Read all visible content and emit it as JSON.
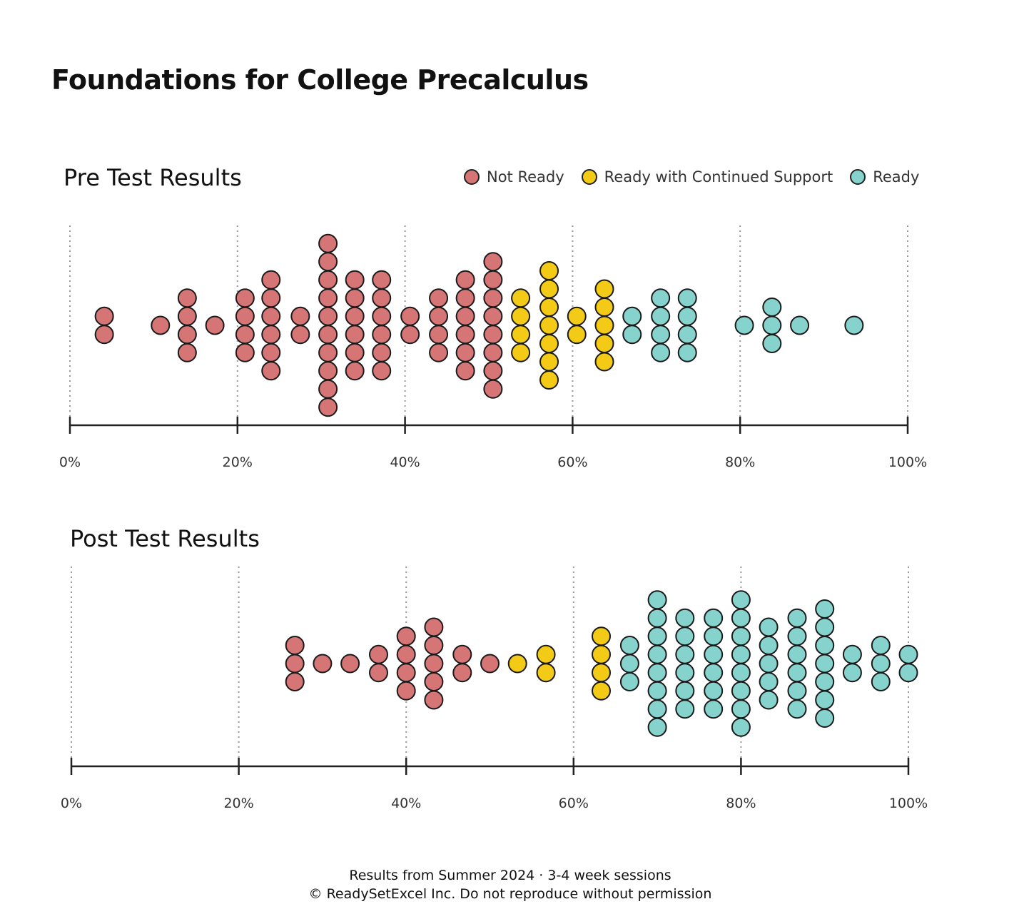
{
  "page_title": "Foundations for College Precalculus",
  "legend": [
    {
      "label": "Not Ready",
      "color": "#d57576"
    },
    {
      "label": "Ready with Continued Support",
      "color": "#f3cb17"
    },
    {
      "label": "Ready",
      "color": "#85d3cc"
    }
  ],
  "footer": {
    "line1": "Results from Summer 2024 · 3-4 week sessions",
    "line2": "© ReadySetExcel Inc. Do not reproduce without permission"
  },
  "chart_data": [
    {
      "type": "scatter",
      "title": "Pre Test Results",
      "xlim": [
        0,
        100
      ],
      "x_ticks": [
        "0%",
        "20%",
        "40%",
        "60%",
        "80%",
        "100%"
      ],
      "grid": "vertical dotted",
      "legend_position": "top-right",
      "point_columns": [
        {
          "x": 4.1,
          "count": 2,
          "category": "Not Ready"
        },
        {
          "x": 10.8,
          "count": 1,
          "category": "Not Ready"
        },
        {
          "x": 14,
          "count": 4,
          "category": "Not Ready"
        },
        {
          "x": 17.3,
          "count": 1,
          "category": "Not Ready"
        },
        {
          "x": 20.9,
          "count": 4,
          "category": "Not Ready"
        },
        {
          "x": 24,
          "count": 6,
          "category": "Not Ready"
        },
        {
          "x": 27.5,
          "count": 2,
          "category": "Not Ready"
        },
        {
          "x": 30.8,
          "count": 10,
          "category": "Not Ready"
        },
        {
          "x": 34,
          "count": 6,
          "category": "Not Ready"
        },
        {
          "x": 37.2,
          "count": 6,
          "category": "Not Ready"
        },
        {
          "x": 40.6,
          "count": 2,
          "category": "Not Ready"
        },
        {
          "x": 44,
          "count": 4,
          "category": "Not Ready"
        },
        {
          "x": 47.2,
          "count": 6,
          "category": "Not Ready"
        },
        {
          "x": 50.5,
          "count": 8,
          "category": "Not Ready"
        },
        {
          "x": 53.8,
          "count": 4,
          "category": "Ready with Continued Support"
        },
        {
          "x": 57.2,
          "count": 7,
          "category": "Ready with Continued Support"
        },
        {
          "x": 60.5,
          "count": 2,
          "category": "Ready with Continued Support"
        },
        {
          "x": 63.8,
          "count": 5,
          "category": "Ready with Continued Support"
        },
        {
          "x": 67.1,
          "count": 2,
          "category": "Ready"
        },
        {
          "x": 70.5,
          "count": 4,
          "category": "Ready"
        },
        {
          "x": 73.7,
          "count": 4,
          "category": "Ready"
        },
        {
          "x": 80.5,
          "count": 1,
          "category": "Ready"
        },
        {
          "x": 83.8,
          "count": 3,
          "category": "Ready"
        },
        {
          "x": 87.1,
          "count": 1,
          "category": "Ready"
        },
        {
          "x": 93.6,
          "count": 1,
          "category": "Ready"
        }
      ]
    },
    {
      "type": "scatter",
      "title": "Post Test Results",
      "xlim": [
        0,
        100
      ],
      "x_ticks": [
        "0%",
        "20%",
        "40%",
        "60%",
        "80%",
        "100%"
      ],
      "grid": "vertical dotted",
      "point_columns": [
        {
          "x": 26.7,
          "count": 3,
          "category": "Not Ready"
        },
        {
          "x": 30,
          "count": 1,
          "category": "Not Ready"
        },
        {
          "x": 33.3,
          "count": 1,
          "category": "Not Ready"
        },
        {
          "x": 36.7,
          "count": 2,
          "category": "Not Ready"
        },
        {
          "x": 40,
          "count": 4,
          "category": "Not Ready"
        },
        {
          "x": 43.3,
          "count": 5,
          "category": "Not Ready"
        },
        {
          "x": 46.7,
          "count": 2,
          "category": "Not Ready"
        },
        {
          "x": 50,
          "count": 1,
          "category": "Not Ready"
        },
        {
          "x": 53.3,
          "count": 1,
          "category": "Ready with Continued Support"
        },
        {
          "x": 56.7,
          "count": 2,
          "category": "Ready with Continued Support"
        },
        {
          "x": 63.3,
          "count": 4,
          "category": "Ready with Continued Support"
        },
        {
          "x": 66.7,
          "count": 3,
          "category": "Ready"
        },
        {
          "x": 70,
          "count": 8,
          "category": "Ready"
        },
        {
          "x": 73.3,
          "count": 6,
          "category": "Ready"
        },
        {
          "x": 76.7,
          "count": 6,
          "category": "Ready"
        },
        {
          "x": 80,
          "count": 8,
          "category": "Ready"
        },
        {
          "x": 83.3,
          "count": 5,
          "category": "Ready"
        },
        {
          "x": 86.7,
          "count": 6,
          "category": "Ready"
        },
        {
          "x": 90,
          "count": 7,
          "category": "Ready"
        },
        {
          "x": 93.3,
          "count": 2,
          "category": "Ready"
        },
        {
          "x": 96.7,
          "count": 3,
          "category": "Ready"
        },
        {
          "x": 100,
          "count": 2,
          "category": "Ready"
        }
      ]
    }
  ]
}
